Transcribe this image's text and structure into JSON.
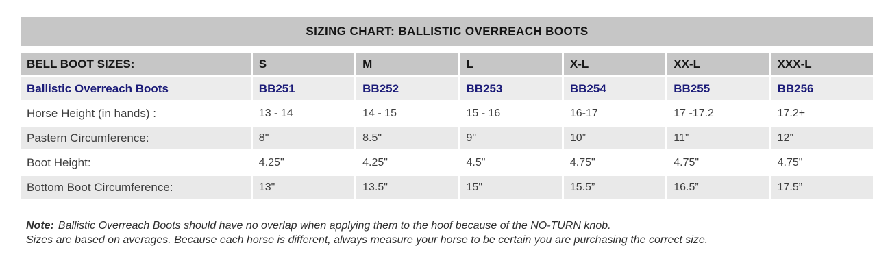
{
  "chart_data": {
    "type": "table",
    "title": "SIZING CHART: BALLISTIC OVERREACH BOOTS",
    "columns": [
      "BELL BOOT SIZES:",
      "S",
      "M",
      "L",
      "X-L",
      "XX-L",
      "XXX-L"
    ],
    "rows": [
      [
        "Ballistic Overreach Boots",
        "BB251",
        "BB252",
        "BB253",
        "BB254",
        "BB255",
        "BB256"
      ],
      [
        "Horse Height (in hands) :",
        "13 - 14",
        "14 - 15",
        "15 - 16",
        "16-17",
        "17 -17.2",
        "17.2+"
      ],
      [
        "Pastern Circumference:",
        "8\"",
        "8.5\"",
        "9\"",
        "10”",
        "11”",
        "12”"
      ],
      [
        "Boot Height:",
        "4.25\"",
        "4.25\"",
        "4.5\"",
        "4.75\"",
        "4.75\"",
        "4.75\""
      ],
      [
        "Bottom Boot Circumference:",
        "13\"",
        "13.5\"",
        "15\"",
        "15.5”",
        "16.5”",
        "17.5”"
      ]
    ],
    "annotations": [
      "Note: Ballistic Overreach Boots should have no overlap when applying them to the hoof because of the NO-TURN knob.",
      "Sizes are based on averages. Because each horse is different, always measure your horse to be certain you are purchasing the correct size."
    ]
  },
  "note": {
    "prefix": "Note:",
    "line1": "Ballistic Overreach Boots should have no overlap when applying them to the hoof because of the NO-TURN knob.",
    "line2": "Sizes are based on averages. Because each horse is different, always measure your horse to be certain you are purchasing the correct size."
  },
  "colors": {
    "title_bar_gray": "#c6c6c6",
    "header_row_gray": "#c6c6c6",
    "shaded_row_gray": "#e9e9e9",
    "product_row_gray": "#ececec",
    "product_text_navy": "#1b1b78",
    "body_text": "#3d3d3d"
  }
}
